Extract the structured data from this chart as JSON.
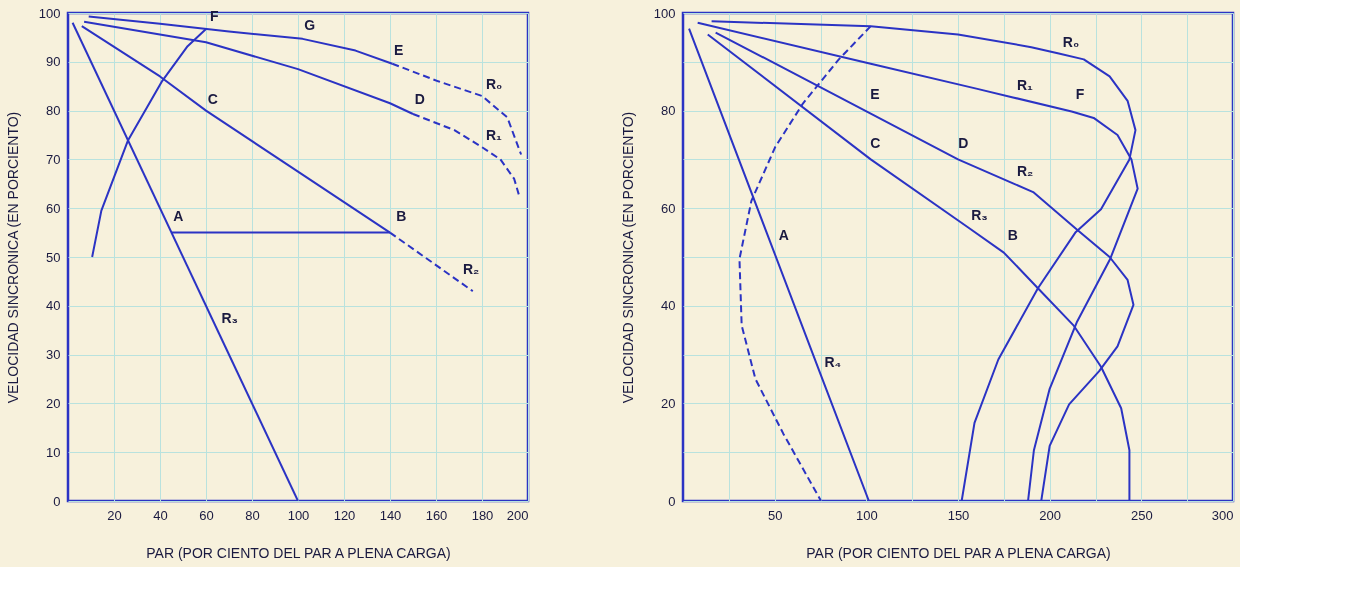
{
  "chart_data": [
    {
      "type": "line",
      "xlabel": "PAR (POR CIENTO DEL PAR A PLENA CARGA)",
      "ylabel": "VELOCIDAD SINCRONICA (EN PORCIENTO)",
      "xlim": [
        0,
        200
      ],
      "ylim": [
        0,
        100
      ],
      "xticks": [
        20,
        40,
        60,
        80,
        100,
        120,
        140,
        160,
        180,
        200
      ],
      "yticks": [
        0,
        10,
        20,
        30,
        40,
        50,
        60,
        70,
        80,
        90,
        100
      ],
      "grid": true,
      "series": [
        {
          "color": "#2b33c4",
          "line_style": "solid",
          "x": [
            9,
            40,
            70,
            102,
            125,
            141
          ],
          "values": [
            99.3,
            97.8,
            96.2,
            94.7,
            92.3,
            89.6
          ]
        },
        {
          "color": "#2b33c4",
          "line_style": "dashed",
          "x": [
            141,
            161,
            180,
            191,
            197
          ],
          "values": [
            89.6,
            86,
            83,
            78.6,
            71
          ]
        },
        {
          "color": "#2b33c4",
          "line_style": "solid",
          "x": [
            7,
            60,
            100,
            140,
            150
          ],
          "values": [
            98.2,
            94,
            88.5,
            81.5,
            79.3
          ]
        },
        {
          "color": "#2b33c4",
          "line_style": "dashed",
          "x": [
            150,
            168,
            180,
            188,
            194,
            196
          ],
          "values": [
            79.3,
            76,
            72.5,
            70,
            66,
            62.8
          ]
        },
        {
          "color": "#2b33c4",
          "line_style": "solid",
          "x": [
            6,
            40,
            60,
            100,
            140
          ],
          "values": [
            97.3,
            87,
            80,
            67.5,
            55
          ]
        },
        {
          "color": "#2b33c4",
          "line_style": "dashed",
          "x": [
            140,
            170,
            176
          ],
          "values": [
            55,
            45,
            43
          ]
        },
        {
          "color": "#2b33c4",
          "line_style": "solid",
          "x": [
            2,
            65,
            100
          ],
          "values": [
            98,
            35,
            0
          ]
        },
        {
          "color": "#2b33c4",
          "line_style": "solid",
          "x": [
            45,
            140
          ],
          "values": [
            55,
            55
          ]
        },
        {
          "color": "#2b33c4",
          "line_style": "solid",
          "x": [
            10.5,
            14.5,
            26,
            41,
            52,
            60
          ],
          "values": [
            50,
            59.5,
            73.8,
            86.1,
            93.2,
            96.7
          ]
        }
      ],
      "annotations": [
        {
          "text": "F",
          "x": 60,
          "y": 97
        },
        {
          "text": "G",
          "x": 101,
          "y": 95
        },
        {
          "text": "E",
          "x": 140,
          "y": 90
        },
        {
          "text": "D",
          "x": 149,
          "y": 80
        },
        {
          "text": "C",
          "x": 59,
          "y": 80
        },
        {
          "text": "B",
          "x": 141,
          "y": 56
        },
        {
          "text": "A",
          "x": 44,
          "y": 56
        },
        {
          "text": "R₀",
          "x": 180,
          "y": 83
        },
        {
          "text": "R₁",
          "x": 180,
          "y": 72.5
        },
        {
          "text": "R₂",
          "x": 170,
          "y": 45
        },
        {
          "text": "R₃",
          "x": 65,
          "y": 35
        }
      ]
    },
    {
      "type": "line",
      "xlabel": "PAR (POR CIENTO DEL PAR A PLENA CARGA)",
      "ylabel": "VELOCIDAD SINCRONICA (EN PORCIENTO)",
      "xlim": [
        0,
        300
      ],
      "ylim": [
        0,
        100
      ],
      "xticks": [
        {
          "value": 25,
          "label": null
        },
        50,
        {
          "value": 75,
          "label": null
        },
        100,
        {
          "value": 125,
          "label": null
        },
        150,
        {
          "value": 175,
          "label": null
        },
        200,
        {
          "value": 225,
          "label": null
        },
        250,
        {
          "value": 275,
          "label": null
        },
        300
      ],
      "yticks": [
        0,
        {
          "value": 10,
          "label": null
        },
        20,
        {
          "value": 30,
          "label": null
        },
        40,
        {
          "value": 50,
          "label": null
        },
        60,
        {
          "value": 70,
          "label": null
        },
        80,
        {
          "value": 90,
          "label": null
        },
        100
      ],
      "grid": true,
      "series": [
        {
          "color": "#2b33c4",
          "line_style": "solid",
          "x": [
            15.6,
            102.4,
            150,
            190,
            205,
            218.6,
            232.7,
            242.5,
            246.8,
            243.5,
            228,
            214,
            193.6,
            172,
            159,
            152
          ],
          "values": [
            98.3,
            97.3,
            95.6,
            93,
            91.7,
            90.5,
            87,
            82,
            76,
            70,
            59.8,
            55,
            43.6,
            29,
            16,
            0
          ]
        },
        {
          "color": "#2b33c4",
          "line_style": "solid",
          "x": [
            8,
            102.4,
            160,
            180,
            212,
            224,
            237,
            244.6,
            248,
            233,
            215,
            200,
            191.4,
            188.2
          ],
          "values": [
            98,
            89.6,
            84.5,
            82.7,
            79.8,
            78.5,
            75,
            70,
            64,
            49.6,
            36.8,
            23,
            10.4,
            0
          ]
        },
        {
          "color": "#2b33c4",
          "line_style": "solid",
          "x": [
            17.8,
            102.4,
            150,
            180,
            191,
            215.3,
            232.7,
            242.5,
            245.7,
            237,
            227,
            210.6,
            200,
            195.4
          ],
          "values": [
            96,
            79.4,
            70,
            65.1,
            63.3,
            55.5,
            50,
            45.3,
            40.2,
            31.7,
            26.6,
            19.8,
            11.3,
            0
          ]
        },
        {
          "color": "#2b33c4",
          "line_style": "solid",
          "x": [
            13.5,
            102.4,
            155,
            175,
            193.6,
            213,
            228,
            239,
            243.5,
            243.5
          ],
          "values": [
            95.6,
            70,
            56.2,
            50.9,
            43.6,
            36,
            27.5,
            19,
            10.4,
            0
          ]
        },
        {
          "color": "#2b33c4",
          "line_style": "solid",
          "x": [
            3.3,
            75,
            101.4
          ],
          "values": [
            96.8,
            26,
            0
          ]
        },
        {
          "color": "#2b33c4",
          "line_style": "dashed",
          "x": [
            102.4,
            85,
            65.5,
            50.4,
            37.3,
            30.8,
            32,
            39.5,
            54.7,
            75.3
          ],
          "values": [
            97.3,
            90.5,
            81.5,
            72.6,
            61.5,
            49.6,
            36,
            25,
            13.8,
            0
          ]
        }
      ],
      "annotations": [
        {
          "text": "R₀",
          "x": 205,
          "y": 91.7
        },
        {
          "text": "R₁",
          "x": 180,
          "y": 82.7
        },
        {
          "text": "F",
          "x": 212,
          "y": 81
        },
        {
          "text": "E",
          "x": 100,
          "y": 81
        },
        {
          "text": "D",
          "x": 148,
          "y": 71
        },
        {
          "text": "C",
          "x": 100,
          "y": 71
        },
        {
          "text": "R₂",
          "x": 180,
          "y": 65.1
        },
        {
          "text": "R₃",
          "x": 155,
          "y": 56.2
        },
        {
          "text": "B",
          "x": 175,
          "y": 52
        },
        {
          "text": "A",
          "x": 50,
          "y": 52
        },
        {
          "text": "R₄",
          "x": 75,
          "y": 26
        }
      ]
    }
  ]
}
